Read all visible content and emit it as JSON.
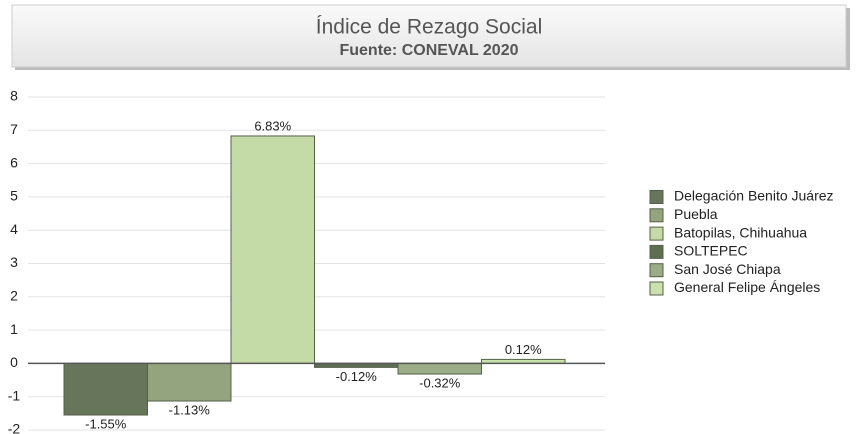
{
  "chart_data": {
    "type": "bar",
    "title": "Índice de Rezago Social",
    "subtitle": "Fuente: CONEVAL 2020",
    "categories": [
      null
    ],
    "series": [
      {
        "name": "Delegación Benito Juárez",
        "color": "#67765a",
        "values": [
          -1.55
        ],
        "value_labels": [
          "-1.55%"
        ]
      },
      {
        "name": "Puebla",
        "color": "#93a47f",
        "values": [
          -1.13
        ],
        "value_labels": [
          "-1.13%"
        ]
      },
      {
        "name": "Batopilas, Chihuahua",
        "color": "#c4dba7",
        "values": [
          6.83
        ],
        "value_labels": [
          "6.83%"
        ]
      },
      {
        "name": "SOLTEPEC",
        "color": "#5e6e51",
        "values": [
          -0.12
        ],
        "value_labels": [
          "-0.12%"
        ]
      },
      {
        "name": "San José Chiapa",
        "color": "#9bac88",
        "values": [
          -0.32
        ],
        "value_labels": [
          "-0.32%"
        ]
      },
      {
        "name": "General Felipe Ángeles",
        "color": "#c9e1ad",
        "values": [
          0.12
        ],
        "value_labels": [
          "0.12%"
        ]
      }
    ],
    "ylim": [
      -2,
      8
    ],
    "yticks": [
      -2,
      -1,
      0,
      1,
      2,
      3,
      4,
      5,
      6,
      7,
      8
    ],
    "grid": true,
    "legend": "right"
  }
}
